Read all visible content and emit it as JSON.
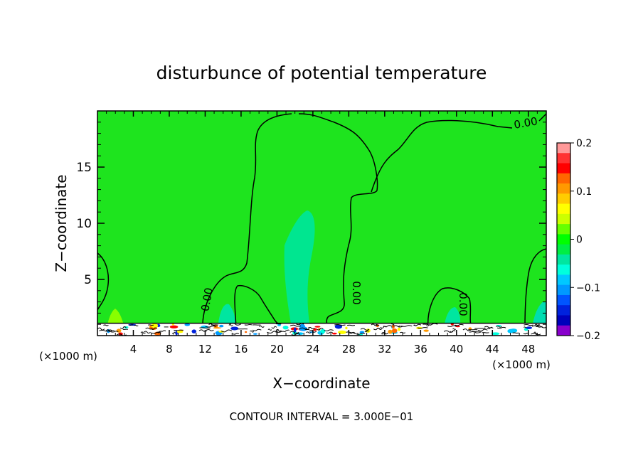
{
  "chart_data": {
    "type": "heatmap",
    "title": "disturbunce of potential temperature",
    "xlabel": "X−coordinate",
    "ylabel": "Z−coordinate",
    "x_unit": "(×1000 m)",
    "x_unit_right": "(×1000 m)",
    "xlim": [
      0,
      50
    ],
    "ylim": [
      0,
      20
    ],
    "x_ticks": [
      4,
      8,
      12,
      16,
      20,
      24,
      28,
      32,
      36,
      40,
      44,
      48
    ],
    "x_tick_labels": [
      "4",
      "8",
      "12",
      "16",
      "20",
      "24",
      "28",
      "32",
      "36",
      "40",
      "44",
      "48"
    ],
    "y_ticks": [
      5,
      10,
      15
    ],
    "y_tick_labels": [
      "5",
      "10",
      "15"
    ],
    "colorbar": {
      "range": [
        -0.2,
        0.2
      ],
      "tick_values": [
        0.2,
        0.1,
        0,
        -0.1,
        -0.2
      ],
      "tick_labels": [
        "0.2",
        "0.1",
        "0",
        "−0.1",
        "−0.2"
      ],
      "colors": [
        "#ff9999",
        "#ff3333",
        "#ff0000",
        "#ff6600",
        "#ff9900",
        "#ffcc00",
        "#ffff00",
        "#ccff00",
        "#66ff00",
        "#00ff00",
        "#00ee44",
        "#00e6a0",
        "#00ffdd",
        "#00c8ff",
        "#0099ff",
        "#0055ff",
        "#0022dd",
        "#0000bb",
        "#8800cc"
      ]
    },
    "contour_labels": [
      "0.00",
      "0.00",
      "0.00",
      "0.00"
    ],
    "footer": "CONTOUR INTERVAL = 3.000E−01"
  }
}
